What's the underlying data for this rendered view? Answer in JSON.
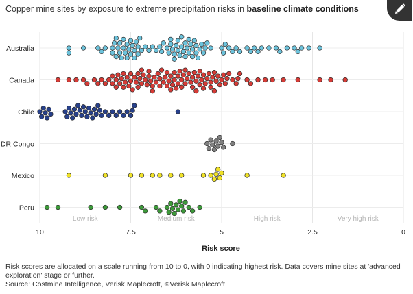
{
  "title": {
    "prefix": "Copper mine sites by exposure to extreme precipitation risks in ",
    "emphasis": "baseline climate conditions"
  },
  "edit_button": {
    "icon": "pencil-icon"
  },
  "chart_data": {
    "type": "scatter",
    "xlabel": "Risk score",
    "xlim": [
      10,
      0
    ],
    "x_ticks": [
      "10",
      "7.5",
      "5",
      "2.5",
      "0"
    ],
    "x_tick_values": [
      10,
      7.5,
      5,
      2.5,
      0
    ],
    "risk_bands": [
      {
        "label": "Low risk",
        "center": 8.75
      },
      {
        "label": "Medium risk",
        "center": 6.25
      },
      {
        "label": "High risk",
        "center": 3.75
      },
      {
        "label": "Very high risk",
        "center": 1.25
      }
    ],
    "grid": true,
    "series": [
      {
        "name": "Australia",
        "color": "#6cc3dc",
        "x": [
          9.2,
          9.2,
          8.8,
          8.4,
          8.3,
          8.2,
          8.0,
          8.0,
          7.95,
          7.9,
          7.9,
          7.85,
          7.8,
          7.8,
          7.75,
          7.7,
          7.7,
          7.65,
          7.6,
          7.6,
          7.55,
          7.5,
          7.5,
          7.45,
          7.4,
          7.4,
          7.35,
          7.3,
          7.3,
          7.25,
          7.2,
          7.1,
          7.0,
          6.9,
          6.8,
          6.7,
          6.65,
          6.6,
          6.5,
          6.45,
          6.4,
          6.4,
          6.35,
          6.3,
          6.3,
          6.25,
          6.2,
          6.2,
          6.15,
          6.1,
          6.1,
          6.05,
          6.0,
          6.0,
          5.95,
          5.9,
          5.9,
          5.85,
          5.8,
          5.8,
          5.75,
          5.7,
          5.7,
          5.65,
          5.6,
          5.55,
          5.5,
          5.45,
          5.4,
          5.3,
          5.0,
          4.95,
          4.9,
          4.8,
          4.7,
          4.6,
          4.5,
          4.3,
          4.2,
          4.1,
          4.0,
          3.9,
          3.7,
          3.5,
          3.4,
          3.2,
          3.0,
          2.9,
          2.8,
          2.6,
          2.3
        ]
      },
      {
        "name": "Canada",
        "color": "#d63b36",
        "x": [
          9.5,
          9.2,
          9.0,
          8.8,
          8.7,
          8.5,
          8.4,
          8.3,
          8.2,
          8.1,
          8.0,
          8.0,
          7.9,
          7.9,
          7.85,
          7.8,
          7.75,
          7.7,
          7.7,
          7.65,
          7.6,
          7.55,
          7.5,
          7.5,
          7.45,
          7.4,
          7.35,
          7.3,
          7.3,
          7.25,
          7.2,
          7.2,
          7.15,
          7.1,
          7.05,
          7.0,
          7.0,
          6.95,
          6.9,
          6.9,
          6.85,
          6.8,
          6.75,
          6.7,
          6.7,
          6.65,
          6.6,
          6.55,
          6.5,
          6.5,
          6.45,
          6.4,
          6.4,
          6.35,
          6.3,
          6.3,
          6.25,
          6.2,
          6.2,
          6.15,
          6.1,
          6.1,
          6.05,
          6.0,
          6.0,
          5.95,
          5.9,
          5.85,
          5.8,
          5.8,
          5.75,
          5.7,
          5.7,
          5.65,
          5.6,
          5.6,
          5.55,
          5.5,
          5.5,
          5.45,
          5.4,
          5.35,
          5.3,
          5.3,
          5.25,
          5.2,
          5.2,
          5.15,
          5.1,
          5.05,
          5.0,
          4.95,
          4.9,
          4.85,
          4.8,
          4.7,
          4.6,
          4.55,
          4.5,
          4.3,
          4.2,
          4.0,
          3.8,
          3.6,
          3.3,
          2.9,
          2.3,
          2.0,
          1.6
        ]
      },
      {
        "name": "Chile",
        "color": "#27408b",
        "x": [
          10.0,
          9.95,
          9.9,
          9.85,
          9.8,
          9.75,
          9.7,
          9.3,
          9.25,
          9.2,
          9.15,
          9.1,
          9.05,
          9.0,
          8.95,
          8.9,
          8.85,
          8.8,
          8.75,
          8.7,
          8.65,
          8.6,
          8.55,
          8.5,
          8.45,
          8.4,
          8.35,
          8.3,
          8.2,
          8.1,
          8.0,
          7.9,
          7.8,
          7.7,
          7.6,
          7.5,
          7.45,
          7.4,
          6.2
        ]
      },
      {
        "name": "DR Congo",
        "color": "#808080",
        "x": [
          5.4,
          5.35,
          5.3,
          5.25,
          5.2,
          5.15,
          5.1,
          5.05,
          5.0,
          4.95,
          4.7
        ]
      },
      {
        "name": "Mexico",
        "color": "#f0e228",
        "x": [
          9.2,
          8.2,
          7.5,
          7.2,
          6.9,
          6.7,
          6.4,
          6.1,
          5.5,
          5.3,
          5.2,
          5.15,
          5.1,
          5.05,
          5.0,
          4.3,
          3.3
        ]
      },
      {
        "name": "Peru",
        "color": "#3d9a3a",
        "x": [
          9.8,
          9.5,
          8.6,
          8.2,
          7.8,
          7.2,
          7.1,
          6.8,
          6.7,
          6.5,
          6.45,
          6.4,
          6.35,
          6.3,
          6.25,
          6.2,
          6.15,
          6.1,
          6.05,
          6.0,
          5.9,
          5.8,
          5.6
        ]
      }
    ]
  },
  "footnote": "Risk scores are allocated on a scale running from 10 to 0, with 0 indicating highest risk. Data covers mine sites at 'advanced exploration' stage or further.",
  "source": "Source: Costmine Intelligence, Verisk Maplecroft, ©Verisk Maplecroft"
}
